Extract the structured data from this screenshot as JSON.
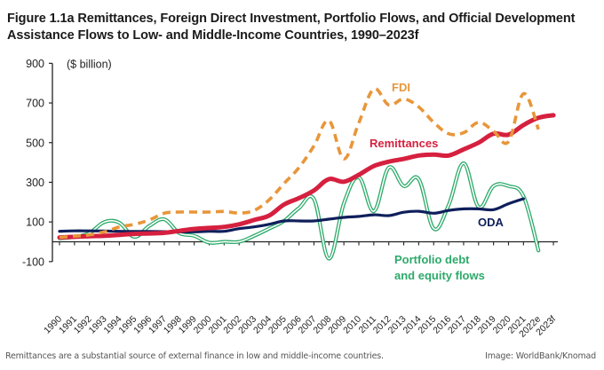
{
  "title_line1": "Figure 1.1a Remittances, Foreign Direct Investment, Portfolio Flows, and Official Development",
  "title_line2": "Assistance Flows to Low- and Middle-Income Countries, 1990–2023f",
  "footer": {
    "caption": "Remittances are a substantial source of external finance in low and middle-income countries.",
    "credit": "Image: WorldBank/Knomad"
  },
  "chart_data": {
    "type": "line",
    "title": "Figure 1.1a Remittances, Foreign Direct Investment, Portfolio Flows, and Official Development Assistance Flows to Low- and Middle-Income Countries, 1990–2023f",
    "ylabel": "($ billion)",
    "xlabel": "",
    "ylim": [
      -100,
      900
    ],
    "yticks": [
      900,
      700,
      500,
      300,
      100,
      -100
    ],
    "grid": false,
    "legend": "inline labels",
    "x": [
      "1990",
      "1991",
      "1992",
      "1993",
      "1994",
      "1995",
      "1996",
      "1997",
      "1998",
      "1999",
      "2000",
      "2001",
      "2002",
      "2003",
      "2004",
      "2005",
      "2006",
      "2007",
      "2008",
      "2009",
      "2010",
      "2011",
      "2012",
      "2013",
      "2014",
      "2015",
      "2016",
      "2017",
      "2018",
      "2019",
      "2020",
      "2021",
      "2022e",
      "2023f"
    ],
    "series": [
      {
        "name": "FDI",
        "label": "FDI",
        "color": "#E8963A",
        "style": "dashed",
        "values": [
          22,
          28,
          35,
          50,
          75,
          88,
          110,
          144,
          150,
          150,
          150,
          153,
          145,
          158,
          211,
          294,
          374,
          484,
          611,
          418,
          600,
          770,
          690,
          720,
          680,
          602,
          545,
          550,
          602,
          558,
          505,
          747,
          567,
          null
        ]
      },
      {
        "name": "Remittances",
        "label": "Remittances",
        "color": "#D6203F",
        "style": "thick",
        "values": [
          22,
          25,
          28,
          30,
          35,
          40,
          42,
          45,
          55,
          65,
          70,
          75,
          88,
          110,
          132,
          188,
          220,
          259,
          316,
          303,
          338,
          382,
          404,
          418,
          435,
          440,
          435,
          466,
          500,
          545,
          540,
          589,
          625,
          638
        ]
      },
      {
        "name": "ODA",
        "label": "ODA",
        "color": "#0E1F5B",
        "style": "solid",
        "values": [
          53,
          55,
          55,
          54,
          53,
          52,
          52,
          51,
          50,
          50,
          53,
          53,
          66,
          75,
          88,
          105,
          105,
          105,
          114,
          123,
          128,
          136,
          132,
          149,
          154,
          144,
          158,
          166,
          166,
          162,
          192,
          217,
          null,
          null
        ]
      },
      {
        "name": "Portfolio debt and equity flows",
        "label": "Portfolio debt and equity flows",
        "label_lines": [
          "Portfolio debt",
          "and equity flows"
        ],
        "color": "#2DAA6A",
        "style": "double",
        "values": [
          18,
          25,
          44,
          100,
          96,
          25,
          80,
          113,
          44,
          30,
          -4,
          0,
          0,
          30,
          66,
          105,
          170,
          215,
          -85,
          194,
          325,
          154,
          374,
          281,
          316,
          66,
          185,
          396,
          176,
          281,
          281,
          229,
          -44,
          null
        ]
      }
    ]
  }
}
